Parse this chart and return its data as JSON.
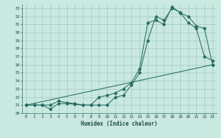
{
  "xlabel": "Humidex (Indice chaleur)",
  "ylabel": "",
  "bg_color": "#c8e8e0",
  "grid_color": "#a0c8c0",
  "line_color": "#2a6e64",
  "xlim": [
    -0.5,
    23.5
  ],
  "ylim": [
    20,
    33.5
  ],
  "yticks": [
    20,
    21,
    22,
    23,
    24,
    25,
    26,
    27,
    28,
    29,
    30,
    31,
    32,
    33
  ],
  "xticks": [
    0,
    1,
    2,
    3,
    4,
    5,
    6,
    7,
    8,
    9,
    10,
    11,
    12,
    13,
    14,
    15,
    16,
    17,
    18,
    19,
    20,
    21,
    22,
    23
  ],
  "line1_x": [
    0,
    1,
    2,
    3,
    4,
    5,
    6,
    7,
    8,
    9,
    10,
    11,
    12,
    13,
    14,
    15,
    16,
    17,
    18,
    19,
    20,
    21,
    22,
    23
  ],
  "line1_y": [
    21,
    21,
    21,
    20.5,
    21.2,
    21.2,
    21.1,
    21,
    21,
    21,
    21,
    22,
    22.2,
    23.5,
    25,
    29,
    32,
    31.5,
    33,
    32.5,
    31.2,
    30.5,
    27,
    26.5
  ],
  "line2_x": [
    0,
    1,
    2,
    3,
    4,
    5,
    6,
    7,
    8,
    9,
    10,
    11,
    12,
    13,
    14,
    15,
    16,
    17,
    18,
    19,
    20,
    21,
    22,
    23
  ],
  "line2_y": [
    21,
    21,
    21,
    21,
    21.5,
    21.3,
    21.2,
    21,
    21,
    22,
    22.2,
    22.5,
    23,
    23.8,
    25.5,
    31.2,
    31.5,
    31,
    33.2,
    32.4,
    32,
    30.8,
    30.5,
    26
  ],
  "line3_x": [
    0,
    23
  ],
  "line3_y": [
    21,
    26
  ]
}
